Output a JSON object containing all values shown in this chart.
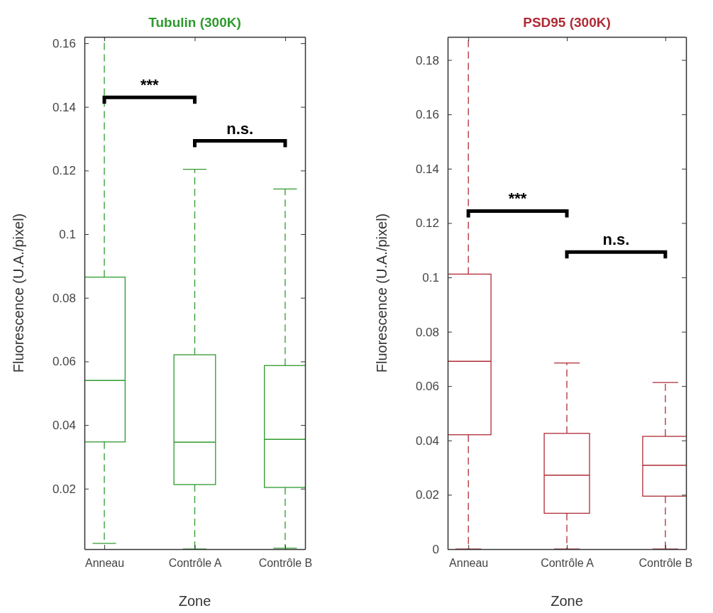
{
  "chart_data": [
    {
      "type": "box",
      "title": "Tubulin (300K)",
      "xlabel": "Zone",
      "ylabel": "Fluorescence (U.A./pixel)",
      "categories": [
        "Anneau",
        "Contrôle A",
        "Contrôle B"
      ],
      "ylim": [
        0.001,
        0.162
      ],
      "yticks": [
        0.02,
        0.04,
        0.06,
        0.08,
        0.1,
        0.12,
        0.14,
        0.16
      ],
      "series": [
        {
          "color": "#2e9a2e",
          "boxes": [
            {
              "low": 0.0028,
              "q1": 0.0347,
              "median": 0.054,
              "q3": 0.0865,
              "high": 0.162
            },
            {
              "low": 0.001,
              "q1": 0.0213,
              "median": 0.0346,
              "q3": 0.0621,
              "high": 0.1204
            },
            {
              "low": 0.0013,
              "q1": 0.0204,
              "median": 0.0355,
              "q3": 0.0587,
              "high": 0.1142
            }
          ]
        }
      ],
      "annotations": [
        "***",
        "n.s."
      ]
    },
    {
      "type": "box",
      "title": "PSD95 (300K)",
      "xlabel": "Zone",
      "ylabel": "Fluorescence (U.A./pixel)",
      "categories": [
        "Anneau",
        "Contrôle A",
        "Contrôle B"
      ],
      "ylim": [
        0,
        0.1885
      ],
      "yticks": [
        0,
        0.02,
        0.04,
        0.06,
        0.08,
        0.1,
        0.12,
        0.14,
        0.16,
        0.18
      ],
      "series": [
        {
          "color": "#b02a36",
          "boxes": [
            {
              "low": 0,
              "q1": 0.0421,
              "median": 0.0691,
              "q3": 0.1012,
              "high": 0.1885
            },
            {
              "low": 0,
              "q1": 0.0132,
              "median": 0.0272,
              "q3": 0.0426,
              "high": 0.0685
            },
            {
              "low": 0,
              "q1": 0.0195,
              "median": 0.0309,
              "q3": 0.0415,
              "high": 0.0613
            }
          ]
        }
      ],
      "annotations": [
        "***",
        "n.s."
      ]
    }
  ]
}
